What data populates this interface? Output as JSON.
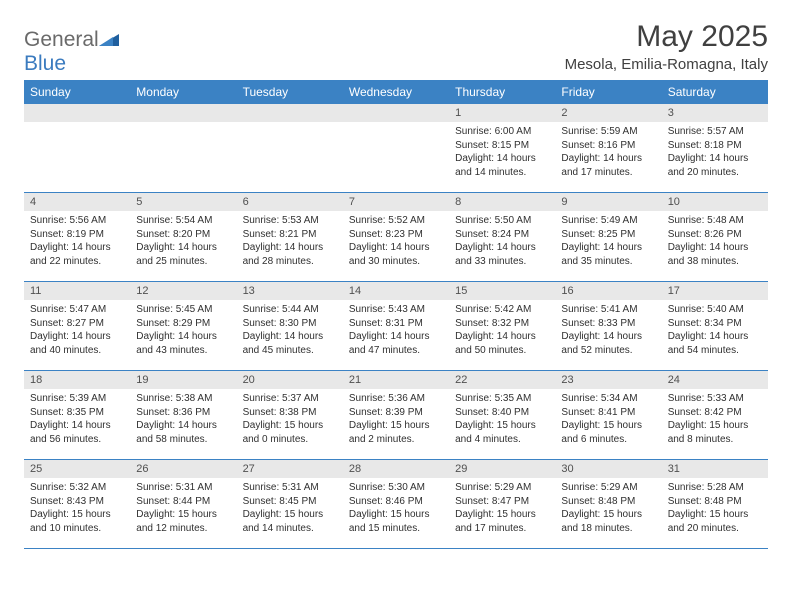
{
  "logo": {
    "text1": "General",
    "text2": "Blue"
  },
  "title": "May 2025",
  "location": "Mesola, Emilia-Romagna, Italy",
  "dayHeaders": [
    "Sunday",
    "Monday",
    "Tuesday",
    "Wednesday",
    "Thursday",
    "Friday",
    "Saturday"
  ],
  "colors": {
    "headerBg": "#3b82c4",
    "headerText": "#ffffff",
    "dayNumBg": "#e8e8e8",
    "cellBorder": "#3b82c4",
    "logoGray": "#6a6a6a",
    "logoBlue": "#3b7bbf",
    "bodyText": "#303030"
  },
  "weeks": [
    [
      null,
      null,
      null,
      null,
      {
        "n": "1",
        "sr": "6:00 AM",
        "ss": "8:15 PM",
        "dh": "14",
        "dm": "14"
      },
      {
        "n": "2",
        "sr": "5:59 AM",
        "ss": "8:16 PM",
        "dh": "14",
        "dm": "17"
      },
      {
        "n": "3",
        "sr": "5:57 AM",
        "ss": "8:18 PM",
        "dh": "14",
        "dm": "20"
      }
    ],
    [
      {
        "n": "4",
        "sr": "5:56 AM",
        "ss": "8:19 PM",
        "dh": "14",
        "dm": "22"
      },
      {
        "n": "5",
        "sr": "5:54 AM",
        "ss": "8:20 PM",
        "dh": "14",
        "dm": "25"
      },
      {
        "n": "6",
        "sr": "5:53 AM",
        "ss": "8:21 PM",
        "dh": "14",
        "dm": "28"
      },
      {
        "n": "7",
        "sr": "5:52 AM",
        "ss": "8:23 PM",
        "dh": "14",
        "dm": "30"
      },
      {
        "n": "8",
        "sr": "5:50 AM",
        "ss": "8:24 PM",
        "dh": "14",
        "dm": "33"
      },
      {
        "n": "9",
        "sr": "5:49 AM",
        "ss": "8:25 PM",
        "dh": "14",
        "dm": "35"
      },
      {
        "n": "10",
        "sr": "5:48 AM",
        "ss": "8:26 PM",
        "dh": "14",
        "dm": "38"
      }
    ],
    [
      {
        "n": "11",
        "sr": "5:47 AM",
        "ss": "8:27 PM",
        "dh": "14",
        "dm": "40"
      },
      {
        "n": "12",
        "sr": "5:45 AM",
        "ss": "8:29 PM",
        "dh": "14",
        "dm": "43"
      },
      {
        "n": "13",
        "sr": "5:44 AM",
        "ss": "8:30 PM",
        "dh": "14",
        "dm": "45"
      },
      {
        "n": "14",
        "sr": "5:43 AM",
        "ss": "8:31 PM",
        "dh": "14",
        "dm": "47"
      },
      {
        "n": "15",
        "sr": "5:42 AM",
        "ss": "8:32 PM",
        "dh": "14",
        "dm": "50"
      },
      {
        "n": "16",
        "sr": "5:41 AM",
        "ss": "8:33 PM",
        "dh": "14",
        "dm": "52"
      },
      {
        "n": "17",
        "sr": "5:40 AM",
        "ss": "8:34 PM",
        "dh": "14",
        "dm": "54"
      }
    ],
    [
      {
        "n": "18",
        "sr": "5:39 AM",
        "ss": "8:35 PM",
        "dh": "14",
        "dm": "56"
      },
      {
        "n": "19",
        "sr": "5:38 AM",
        "ss": "8:36 PM",
        "dh": "14",
        "dm": "58"
      },
      {
        "n": "20",
        "sr": "5:37 AM",
        "ss": "8:38 PM",
        "dh": "15",
        "dm": "0"
      },
      {
        "n": "21",
        "sr": "5:36 AM",
        "ss": "8:39 PM",
        "dh": "15",
        "dm": "2"
      },
      {
        "n": "22",
        "sr": "5:35 AM",
        "ss": "8:40 PM",
        "dh": "15",
        "dm": "4"
      },
      {
        "n": "23",
        "sr": "5:34 AM",
        "ss": "8:41 PM",
        "dh": "15",
        "dm": "6"
      },
      {
        "n": "24",
        "sr": "5:33 AM",
        "ss": "8:42 PM",
        "dh": "15",
        "dm": "8"
      }
    ],
    [
      {
        "n": "25",
        "sr": "5:32 AM",
        "ss": "8:43 PM",
        "dh": "15",
        "dm": "10"
      },
      {
        "n": "26",
        "sr": "5:31 AM",
        "ss": "8:44 PM",
        "dh": "15",
        "dm": "12"
      },
      {
        "n": "27",
        "sr": "5:31 AM",
        "ss": "8:45 PM",
        "dh": "15",
        "dm": "14"
      },
      {
        "n": "28",
        "sr": "5:30 AM",
        "ss": "8:46 PM",
        "dh": "15",
        "dm": "15"
      },
      {
        "n": "29",
        "sr": "5:29 AM",
        "ss": "8:47 PM",
        "dh": "15",
        "dm": "17"
      },
      {
        "n": "30",
        "sr": "5:29 AM",
        "ss": "8:48 PM",
        "dh": "15",
        "dm": "18"
      },
      {
        "n": "31",
        "sr": "5:28 AM",
        "ss": "8:48 PM",
        "dh": "15",
        "dm": "20"
      }
    ]
  ]
}
